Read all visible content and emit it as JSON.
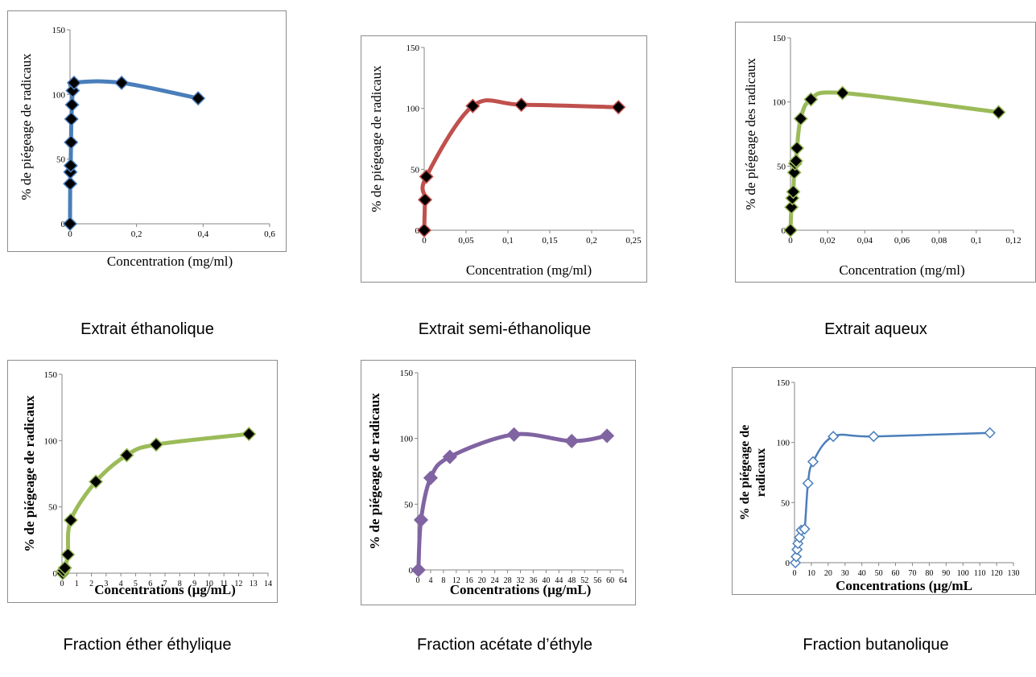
{
  "chart_data": [
    {
      "type": "line",
      "caption": "Extrait éthanolique",
      "xlabel": "Concentration (mg/ml)",
      "ylabel": "% de piégeage de radicaux",
      "bold": false,
      "xlim": [
        0,
        0.6
      ],
      "ylim": [
        0,
        150
      ],
      "xticks": [
        "0",
        "0,2",
        "0,4",
        "0,6"
      ],
      "yticks": [
        "0",
        "50",
        "100",
        "150"
      ],
      "color": "#4a7ebb",
      "marker_fill": "#000000",
      "series": [
        {
          "x": [
            0,
            0.0005,
            0.001,
            0.002,
            0.003,
            0.004,
            0.006,
            0.008,
            0.012,
            0.155,
            0.385
          ],
          "y": [
            0,
            31,
            40,
            45,
            63,
            81,
            92,
            103,
            109,
            109,
            97
          ]
        }
      ]
    },
    {
      "type": "line",
      "caption": "Extrait semi-éthanolique",
      "xlabel": "Concentration (mg/ml)",
      "ylabel": "% de piégeage de radicaux",
      "bold": false,
      "xlim": [
        0,
        0.25
      ],
      "ylim": [
        0,
        150
      ],
      "xticks": [
        "0",
        "0,05",
        "0,1",
        "0,15",
        "0,2",
        "0,25"
      ],
      "yticks": [
        "0",
        "50",
        "100",
        "150"
      ],
      "color": "#c0504d",
      "marker_fill": "#000000",
      "series": [
        {
          "x": [
            0,
            0.001,
            0.0025,
            0.058,
            0.116,
            0.232
          ],
          "y": [
            0,
            25,
            44,
            102,
            103,
            101
          ]
        }
      ]
    },
    {
      "type": "line",
      "caption": "Extrait aqueux",
      "xlabel": "Concentration (mg/ml)",
      "ylabel": "% de piégeage des radicaux",
      "bold": false,
      "xlim": [
        0,
        0.12
      ],
      "ylim": [
        0,
        150
      ],
      "xticks": [
        "0",
        "0,02",
        "0,04",
        "0,06",
        "0,08",
        "0,1",
        "0,12"
      ],
      "yticks": [
        "0",
        "50",
        "100",
        "150"
      ],
      "color": "#9bbb59",
      "marker_fill": "#000000",
      "series": [
        {
          "x": [
            0,
            0.0005,
            0.001,
            0.0015,
            0.002,
            0.0025,
            0.003,
            0.0035,
            0.0055,
            0.011,
            0.028,
            0.112
          ],
          "y": [
            0,
            18,
            25,
            30,
            45,
            52,
            54,
            64,
            87,
            102,
            107,
            92
          ]
        }
      ]
    },
    {
      "type": "line",
      "caption": "Fraction éther éthylique",
      "xlabel": "Concentrations (µg/mL)",
      "ylabel": "% de piégeage de radicaux",
      "bold": true,
      "xlim": [
        0,
        14
      ],
      "ylim": [
        0,
        150
      ],
      "xticks": [
        "0",
        "1",
        "2",
        "3",
        "4",
        "5",
        "6",
        "7",
        "8",
        "9",
        "10",
        "11",
        "12",
        "13",
        "14"
      ],
      "yticks": [
        "0",
        "50",
        "100",
        "150"
      ],
      "color": "#9bbb59",
      "marker_fill": "#000000",
      "series": [
        {
          "x": [
            0.05,
            0.1,
            0.2,
            0.4,
            0.6,
            2.3,
            4.4,
            6.4,
            12.7
          ],
          "y": [
            0,
            2,
            4,
            14,
            40,
            69,
            89,
            97,
            105
          ]
        }
      ]
    },
    {
      "type": "line",
      "caption": "Fraction acétate d’éthyle",
      "xlabel": "Concentrations (µg/mL)",
      "ylabel": "% de piégeage de radicaux",
      "bold": true,
      "xlim": [
        0,
        64
      ],
      "ylim": [
        0,
        150
      ],
      "xticks": [
        "0",
        "4",
        "8",
        "12",
        "16",
        "20",
        "24",
        "28",
        "32",
        "36",
        "40",
        "44",
        "48",
        "52",
        "56",
        "60",
        "64"
      ],
      "yticks": [
        "0",
        "50",
        "100",
        "150"
      ],
      "color": "#8064a2",
      "marker_fill": "#8064a2",
      "series": [
        {
          "x": [
            0.2,
            1,
            4,
            10,
            30,
            48,
            59
          ],
          "y": [
            0,
            38,
            70,
            86,
            103,
            98,
            102
          ]
        }
      ]
    },
    {
      "type": "line",
      "caption": "Fraction butanolique",
      "xlabel": "Concentrations (µg/mL",
      "ylabel": "% de piégeage de radicaux",
      "bold": true,
      "xlim": [
        0,
        130
      ],
      "ylim": [
        0,
        150
      ],
      "xticks": [
        "0",
        "10",
        "20",
        "30",
        "40",
        "50",
        "60",
        "70",
        "80",
        "90",
        "100",
        "110",
        "120",
        "130"
      ],
      "yticks": [
        "0",
        "50",
        "100",
        "150"
      ],
      "color": "#4a7ebb",
      "marker_fill": "#ffffff",
      "series": [
        {
          "x": [
            0.5,
            1,
            1.5,
            2,
            3,
            4,
            6,
            8,
            11,
            23,
            47,
            116
          ],
          "y": [
            0,
            5,
            11,
            16,
            21,
            27,
            28,
            66,
            84,
            105,
            105,
            108
          ]
        }
      ]
    }
  ]
}
